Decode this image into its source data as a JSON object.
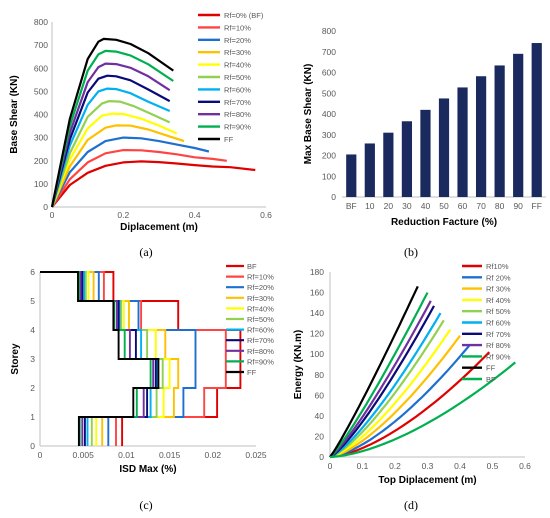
{
  "colors": {
    "BF": "#e00000",
    "10": "#ff4444",
    "20": "#1f6fd0",
    "30": "#ffc000",
    "40": "#ffff00",
    "50": "#92d050",
    "60": "#00b0f0",
    "70": "#0a0a78",
    "80": "#7030a0",
    "90": "#00b050",
    "FF": "#000000",
    "bar": "#1a2a5e",
    "axis": "#bfbfbf",
    "text": "#595959"
  },
  "chart_data": [
    {
      "panel": "(a)",
      "type": "line",
      "xlabel": "Diplacement (m)",
      "ylabel": "Base Shear (KN)",
      "xlim": [
        0,
        0.6
      ],
      "ylim": [
        0,
        800
      ],
      "xticks": [
        "0",
        "0.2",
        "0.4",
        "0.6"
      ],
      "yticks": [
        "0",
        "100",
        "200",
        "300",
        "400",
        "500",
        "600",
        "700",
        "800"
      ],
      "legend_position": "right",
      "series": [
        {
          "name": "Rf=0% (BF)",
          "color_key": "BF",
          "points": [
            [
              0,
              0
            ],
            [
              0.05,
              95
            ],
            [
              0.1,
              148
            ],
            [
              0.15,
              178
            ],
            [
              0.2,
              193
            ],
            [
              0.25,
              197
            ],
            [
              0.3,
              194
            ],
            [
              0.35,
              188
            ],
            [
              0.4,
              181
            ],
            [
              0.45,
              175
            ],
            [
              0.5,
              172
            ],
            [
              0.57,
              160
            ]
          ]
        },
        {
          "name": "Rf=10%",
          "color_key": "10",
          "points": [
            [
              0,
              0
            ],
            [
              0.05,
              120
            ],
            [
              0.1,
              193
            ],
            [
              0.15,
              232
            ],
            [
              0.2,
              246
            ],
            [
              0.25,
              245
            ],
            [
              0.3,
              238
            ],
            [
              0.35,
              228
            ],
            [
              0.4,
              215
            ],
            [
              0.45,
              208
            ],
            [
              0.49,
              200
            ]
          ]
        },
        {
          "name": "Rf=20%",
          "color_key": "20",
          "points": [
            [
              0,
              0
            ],
            [
              0.05,
              150
            ],
            [
              0.1,
              238
            ],
            [
              0.15,
              285
            ],
            [
              0.2,
              300
            ],
            [
              0.25,
              297
            ],
            [
              0.3,
              285
            ],
            [
              0.35,
              270
            ],
            [
              0.4,
              255
            ],
            [
              0.44,
              240
            ]
          ]
        },
        {
          "name": "Rf=30%",
          "color_key": "30",
          "points": [
            [
              0,
              0
            ],
            [
              0.05,
              175
            ],
            [
              0.1,
              290
            ],
            [
              0.15,
              343
            ],
            [
              0.18,
              353
            ],
            [
              0.22,
              352
            ],
            [
              0.27,
              335
            ],
            [
              0.32,
              310
            ],
            [
              0.37,
              285
            ]
          ]
        },
        {
          "name": "Rf=40%",
          "color_key": "40",
          "points": [
            [
              0,
              0
            ],
            [
              0.05,
              205
            ],
            [
              0.1,
              340
            ],
            [
              0.14,
              395
            ],
            [
              0.17,
              404
            ],
            [
              0.2,
              402
            ],
            [
              0.25,
              382
            ],
            [
              0.3,
              352
            ],
            [
              0.35,
              318
            ]
          ]
        },
        {
          "name": "Rf=50%",
          "color_key": "50",
          "points": [
            [
              0,
              0
            ],
            [
              0.05,
              232
            ],
            [
              0.1,
              390
            ],
            [
              0.14,
              447
            ],
            [
              0.16,
              458
            ],
            [
              0.19,
              456
            ],
            [
              0.23,
              436
            ],
            [
              0.28,
              401
            ],
            [
              0.33,
              366
            ]
          ]
        },
        {
          "name": "Rf=60%",
          "color_key": "60",
          "points": [
            [
              0,
              0
            ],
            [
              0.05,
              265
            ],
            [
              0.1,
              442
            ],
            [
              0.13,
              500
            ],
            [
              0.155,
              512
            ],
            [
              0.18,
              510
            ],
            [
              0.22,
              492
            ],
            [
              0.27,
              455
            ],
            [
              0.33,
              415
            ]
          ]
        },
        {
          "name": "Rf=70%",
          "color_key": "70",
          "points": [
            [
              0,
              0
            ],
            [
              0.05,
              292
            ],
            [
              0.1,
              495
            ],
            [
              0.13,
              555
            ],
            [
              0.155,
              568
            ],
            [
              0.18,
              565
            ],
            [
              0.22,
              548
            ],
            [
              0.27,
              508
            ],
            [
              0.33,
              458
            ]
          ]
        },
        {
          "name": "Rf=80%",
          "color_key": "80",
          "points": [
            [
              0,
              0
            ],
            [
              0.05,
              320
            ],
            [
              0.1,
              540
            ],
            [
              0.13,
              605
            ],
            [
              0.15,
              620
            ],
            [
              0.18,
              618
            ],
            [
              0.22,
              602
            ],
            [
              0.27,
              565
            ],
            [
              0.33,
              505
            ]
          ]
        },
        {
          "name": "Rf=90%",
          "color_key": "90",
          "points": [
            [
              0,
              0
            ],
            [
              0.05,
              350
            ],
            [
              0.1,
              590
            ],
            [
              0.13,
              660
            ],
            [
              0.15,
              675
            ],
            [
              0.18,
              672
            ],
            [
              0.22,
              655
            ],
            [
              0.27,
              617
            ],
            [
              0.34,
              545
            ]
          ]
        },
        {
          "name": "FF",
          "color_key": "FF",
          "points": [
            [
              0,
              0
            ],
            [
              0.05,
              380
            ],
            [
              0.1,
              640
            ],
            [
              0.13,
              715
            ],
            [
              0.145,
              727
            ],
            [
              0.18,
              723
            ],
            [
              0.22,
              705
            ],
            [
              0.27,
              665
            ],
            [
              0.34,
              590
            ]
          ]
        }
      ]
    },
    {
      "panel": "(b)",
      "type": "bar",
      "xlabel": "Reduction Facture (%)",
      "ylabel": "Max Base Shear (KN)",
      "categories": [
        "BF",
        "10",
        "20",
        "30",
        "40",
        "50",
        "60",
        "70",
        "80",
        "90",
        "FF"
      ],
      "values": [
        205,
        258,
        310,
        365,
        420,
        475,
        528,
        582,
        634,
        690,
        742
      ],
      "ylim": [
        0,
        800
      ],
      "yticks": [
        "0",
        "100",
        "200",
        "300",
        "400",
        "500",
        "600",
        "700",
        "800"
      ]
    },
    {
      "panel": "(c)",
      "type": "line",
      "xlabel": "ISD Max (%)",
      "ylabel": "Storey",
      "xlim": [
        0,
        0.025
      ],
      "ylim": [
        0,
        6
      ],
      "xticks": [
        "0",
        "0.005",
        "0.01",
        "0.015",
        "0.02",
        "0.025"
      ],
      "yticks": [
        "0",
        "1",
        "2",
        "3",
        "4",
        "5",
        "6"
      ],
      "legend_position": "right",
      "series": [
        {
          "name": "BF",
          "color_key": "BF",
          "values": [
            0.0095,
            0.0205,
            0.0232,
            0.0232,
            0.016,
            0.0085
          ]
        },
        {
          "name": "Rf=10%",
          "color_key": "10",
          "values": [
            0.0088,
            0.019,
            0.0215,
            0.0215,
            0.0117,
            0.0074
          ]
        },
        {
          "name": "Rf=20%",
          "color_key": "20",
          "values": [
            0.0079,
            0.0166,
            0.018,
            0.018,
            0.0114,
            0.0068
          ]
        },
        {
          "name": "Rf=30%",
          "color_key": "30",
          "values": [
            0.0072,
            0.0155,
            0.016,
            0.0145,
            0.0103,
            0.0062
          ]
        },
        {
          "name": "Rf=40%",
          "color_key": "40",
          "values": [
            0.0065,
            0.0143,
            0.015,
            0.0134,
            0.0097,
            0.0056
          ]
        },
        {
          "name": "Rf=50%",
          "color_key": "50",
          "values": [
            0.006,
            0.0135,
            0.0142,
            0.0124,
            0.0094,
            0.0053
          ]
        },
        {
          "name": "Rf=60%",
          "color_key": "60",
          "values": [
            0.0055,
            0.0128,
            0.0136,
            0.0117,
            0.0092,
            0.0051
          ]
        },
        {
          "name": "Rf=70%",
          "color_key": "70",
          "values": [
            0.0052,
            0.0124,
            0.0134,
            0.0111,
            0.0091,
            0.0049
          ]
        },
        {
          "name": "Rf=80%",
          "color_key": "80",
          "values": [
            0.0049,
            0.012,
            0.0131,
            0.0104,
            0.0089,
            0.0047
          ]
        },
        {
          "name": "Rf=90%",
          "color_key": "90",
          "values": [
            0.0046,
            0.0112,
            0.0128,
            0.0098,
            0.0086,
            0.0045
          ]
        },
        {
          "name": "FF",
          "color_key": "FF",
          "values": [
            0.0045,
            0.0108,
            0.0137,
            0.0091,
            0.0085,
            0.0044
          ]
        }
      ]
    },
    {
      "panel": "(d)",
      "type": "line",
      "xlabel": "Top Diplacement (m)",
      "ylabel": "Energy (KN.m)",
      "xlim": [
        0,
        0.6
      ],
      "ylim": [
        0,
        180
      ],
      "xticks": [
        "0",
        "0.1",
        "0.2",
        "0.3",
        "0.4",
        "0.5",
        "0.6"
      ],
      "yticks": [
        "0",
        "20",
        "40",
        "60",
        "80",
        "100",
        "120",
        "140",
        "160",
        "180"
      ],
      "legend_position": "right",
      "series": [
        {
          "name": "Rf10%",
          "color_key": "BF",
          "end": [
            0.49,
            102
          ],
          "k": 1.55
        },
        {
          "name": "Rf 20%",
          "color_key": "20",
          "end": [
            0.43,
            109
          ],
          "k": 1.5
        },
        {
          "name": "Rf 30%",
          "color_key": "30",
          "end": [
            0.4,
            118
          ],
          "k": 1.45
        },
        {
          "name": "Rf 40%",
          "color_key": "40",
          "end": [
            0.37,
            124
          ],
          "k": 1.4
        },
        {
          "name": "Rf 50%",
          "color_key": "50",
          "end": [
            0.35,
            133
          ],
          "k": 1.35
        },
        {
          "name": "Rf 60%",
          "color_key": "60",
          "end": [
            0.34,
            140
          ],
          "k": 1.3
        },
        {
          "name": "Rf 70%",
          "color_key": "70",
          "end": [
            0.32,
            147
          ],
          "k": 1.25
        },
        {
          "name": "Rf 80%",
          "color_key": "80",
          "end": [
            0.31,
            152
          ],
          "k": 1.2
        },
        {
          "name": "Rf 90%",
          "color_key": "90",
          "end": [
            0.3,
            160
          ],
          "k": 1.15
        },
        {
          "name": "FF",
          "color_key": "FF",
          "end": [
            0.27,
            166
          ],
          "k": 1.1
        },
        {
          "name": "BF",
          "color_key": "90",
          "end": [
            0.57,
            92
          ],
          "k": 1.6
        }
      ]
    }
  ]
}
